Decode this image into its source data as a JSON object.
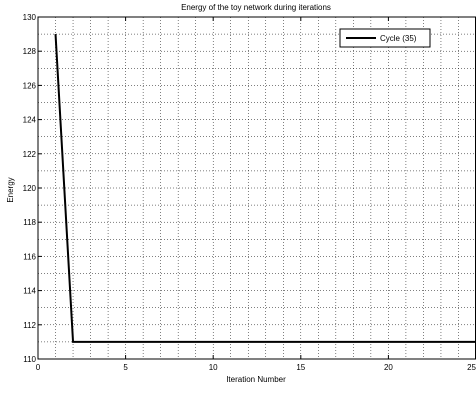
{
  "chart_data": {
    "type": "line",
    "title": "Energy of the toy network during iterations",
    "xlabel": "Iteration Number",
    "ylabel": "Energy",
    "xlim": [
      0,
      25
    ],
    "ylim": [
      110,
      130
    ],
    "x_ticks": [
      0,
      5,
      10,
      15,
      20,
      25
    ],
    "y_ticks": [
      110,
      112,
      114,
      116,
      118,
      120,
      122,
      124,
      126,
      128,
      130
    ],
    "x_tick_labels": [
      "0",
      "5",
      "10",
      "15",
      "20",
      "25"
    ],
    "y_tick_labels": [
      "110",
      "112",
      "114",
      "116",
      "118",
      "120",
      "122",
      "124",
      "126",
      "128",
      "130"
    ],
    "grid": true,
    "grid_style": "dotted",
    "legend_position": "top-right",
    "series": [
      {
        "name": "Cycle (35)",
        "color": "#000000",
        "x": [
          1,
          2,
          3,
          4,
          5,
          6,
          7,
          8,
          9,
          10,
          11,
          12,
          13,
          14,
          15,
          16,
          17,
          18,
          19,
          20,
          21,
          22,
          23,
          24,
          25
        ],
        "y": [
          129,
          111,
          111,
          111,
          111,
          111,
          111,
          111,
          111,
          111,
          111,
          111,
          111,
          111,
          111,
          111,
          111,
          111,
          111,
          111,
          111,
          111,
          111,
          111,
          111
        ]
      }
    ]
  }
}
